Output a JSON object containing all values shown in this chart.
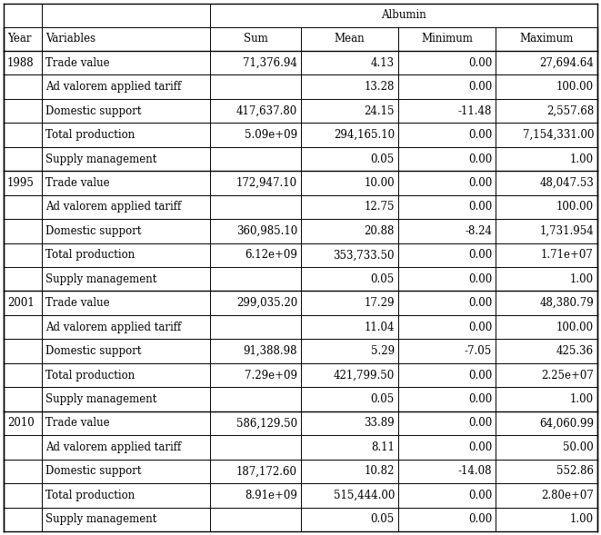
{
  "title": "Albumin",
  "header_labels": [
    "Year",
    "Variables",
    "Sum",
    "Mean",
    "Minimum",
    "Maximum"
  ],
  "header_aligns": [
    "left",
    "left",
    "center",
    "center",
    "center",
    "center"
  ],
  "rows": [
    [
      "1988",
      "Trade value",
      "71,376.94",
      "4.13",
      "0.00",
      "27,694.64"
    ],
    [
      "",
      "Ad valorem applied tariff",
      "",
      "13.28",
      "0.00",
      "100.00"
    ],
    [
      "",
      "Domestic support",
      "417,637.80",
      "24.15",
      "-11.48",
      "2,557.68"
    ],
    [
      "",
      "Total production",
      "5.09e+09",
      "294,165.10",
      "0.00",
      "7,154,331.00"
    ],
    [
      "",
      "Supply management",
      "",
      "0.05",
      "0.00",
      "1.00"
    ],
    [
      "1995",
      "Trade value",
      "172,947.10",
      "10.00",
      "0.00",
      "48,047.53"
    ],
    [
      "",
      "Ad valorem applied tariff",
      "",
      "12.75",
      "0.00",
      "100.00"
    ],
    [
      "",
      "Domestic support",
      "360,985.10",
      "20.88",
      "-8.24",
      "1,731.954"
    ],
    [
      "",
      "Total production",
      "6.12e+09",
      "353,733.50",
      "0.00",
      "1.71e+07"
    ],
    [
      "",
      "Supply management",
      "",
      "0.05",
      "0.00",
      "1.00"
    ],
    [
      "2001",
      "Trade value",
      "299,035.20",
      "17.29",
      "0.00",
      "48,380.79"
    ],
    [
      "",
      "Ad valorem applied tariff",
      "",
      "11.04",
      "0.00",
      "100.00"
    ],
    [
      "",
      "Domestic support",
      "91,388.98",
      "5.29",
      "-7.05",
      "425.36"
    ],
    [
      "",
      "Total production",
      "7.29e+09",
      "421,799.50",
      "0.00",
      "2.25e+07"
    ],
    [
      "",
      "Supply management",
      "",
      "0.05",
      "0.00",
      "1.00"
    ],
    [
      "2010",
      "Trade value",
      "586,129.50",
      "33.89",
      "0.00",
      "64,060.99"
    ],
    [
      "",
      "Ad valorem applied tariff",
      "",
      "8.11",
      "0.00",
      "50.00"
    ],
    [
      "",
      "Domestic support",
      "187,172.60",
      "10.82",
      "-14.08",
      "552.86"
    ],
    [
      "",
      "Total production",
      "8.91e+09",
      "515,444.00",
      "0.00",
      "2.80e+07"
    ],
    [
      "",
      "Supply management",
      "",
      "0.05",
      "0.00",
      "1.00"
    ]
  ],
  "col_aligns": [
    "left",
    "left",
    "right",
    "right",
    "right",
    "right"
  ],
  "group_boundary_rows": [
    5,
    10,
    15
  ],
  "bg_color": "white",
  "font_size": 8.5,
  "font_family": "serif"
}
